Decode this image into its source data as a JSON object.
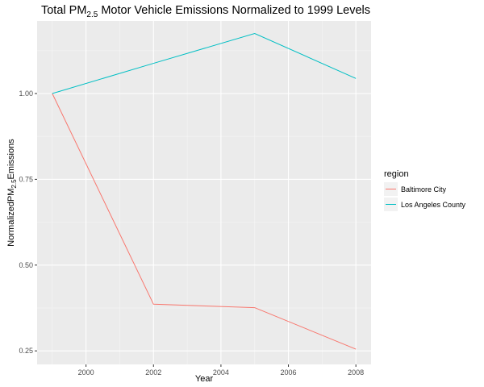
{
  "chart_data": {
    "type": "line",
    "title": {
      "prefix": "Total PM",
      "sub": "2.5",
      "suffix": " Motor Vehicle Emissions Normalized to 1999 Levels"
    },
    "xlabel": "Year",
    "ylabel": {
      "prefix": "NormalizedPM",
      "sub": "2.5",
      "suffix": "Emissions"
    },
    "x": [
      1999,
      2002,
      2005,
      2008
    ],
    "xlim": [
      1998.55,
      2008.45
    ],
    "ylim": [
      0.2105,
      1.2115
    ],
    "xticks": [
      2000,
      2002,
      2004,
      2006,
      2008
    ],
    "xtick_labels": [
      "2000",
      "2002",
      "2004",
      "2006",
      "2008"
    ],
    "yticks": [
      0.25,
      0.5,
      0.75,
      1.0
    ],
    "ytick_labels": [
      "0.25",
      "0.50",
      "0.75",
      "1.00"
    ],
    "grid": true,
    "legend": {
      "title": "region",
      "placement": "right"
    },
    "series": [
      {
        "name": "Baltimore City",
        "color": "#F8766D",
        "values": [
          1.0,
          0.386,
          0.376,
          0.255
        ]
      },
      {
        "name": "Los Angeles County",
        "color": "#00BFC4",
        "values": [
          1.0,
          1.088,
          1.175,
          1.044
        ]
      }
    ]
  }
}
